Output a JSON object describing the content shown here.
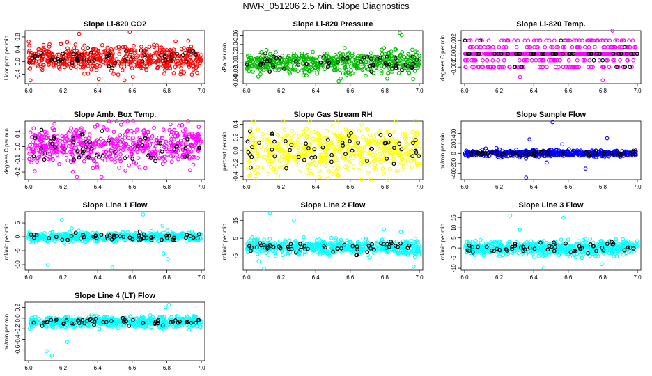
{
  "page_title": "NWR_051206  2.5 Min. Slope Diagnostics",
  "chart_data": [
    {
      "type": "scatter",
      "title": "Slope Li-820 CO2",
      "ylabel": "Licor ppm per min.",
      "color": "#ff0000",
      "xlim": [
        5.98,
        7.02
      ],
      "ylim": [
        -0.7,
        1.0
      ],
      "xticks": [
        "6.0",
        "6.2",
        "6.4",
        "6.6",
        "6.8",
        "7.0"
      ],
      "yticks": [
        "-0.4",
        "0.0",
        "0.4",
        "0.8"
      ],
      "yticks_values": [
        -0.4,
        0.0,
        0.4,
        0.8
      ],
      "center": 0.1,
      "spread": 0.2,
      "outliers": [
        0.95,
        0.9,
        -0.6,
        -0.55,
        -0.4
      ]
    },
    {
      "type": "scatter",
      "title": "Slope Li-820 Pressure",
      "ylabel": "kPa per min.",
      "color": "#00bb00",
      "xlim": [
        5.98,
        7.02
      ],
      "ylim": [
        -0.045,
        0.07
      ],
      "xticks": [
        "6.0",
        "6.2",
        "6.4",
        "6.6",
        "6.8",
        "7.0"
      ],
      "yticks": [
        "-0.04",
        "-0.02",
        "0.00",
        "0.02",
        "0.04",
        "0.06"
      ],
      "yticks_values": [
        -0.04,
        -0.02,
        0.0,
        0.02,
        0.04,
        0.06
      ],
      "center": 0.0,
      "spread": 0.012,
      "outliers": [
        0.065,
        0.06,
        -0.04,
        -0.035
      ]
    },
    {
      "type": "scatter",
      "title": "Slope Li-820 Temp.",
      "ylabel": "degrees C per min.",
      "color": "#ff00ff",
      "xlim": [
        5.98,
        7.02
      ],
      "ylim": [
        -0.0045,
        0.0035
      ],
      "xticks": [
        "6.0",
        "6.2",
        "6.4",
        "6.6",
        "6.8",
        "7.0"
      ],
      "yticks": [
        "-0.002",
        "0.000",
        "0.002"
      ],
      "yticks_values": [
        -0.002,
        0.0,
        0.002
      ],
      "center": 0.0,
      "spread": 0.001,
      "outliers": [
        0.0035,
        -0.0035,
        -0.004
      ],
      "discrete": [
        -0.002,
        -0.001,
        0.0,
        0.001,
        0.002
      ]
    },
    {
      "type": "scatter",
      "title": "Slope Amb. Box Temp.",
      "ylabel": "degrees C per min.",
      "color": "#ff00ff",
      "xlim": [
        5.98,
        7.02
      ],
      "ylim": [
        -0.26,
        0.2
      ],
      "xticks": [
        "6.0",
        "6.2",
        "6.4",
        "6.6",
        "6.8",
        "7.0"
      ],
      "yticks": [
        "-0.2",
        "-0.1",
        "0.0",
        "0.1"
      ],
      "yticks_values": [
        -0.2,
        -0.1,
        0.0,
        0.1
      ],
      "center": 0.0,
      "spread": 0.08,
      "outliers": [
        0.18,
        -0.24
      ]
    },
    {
      "type": "scatter",
      "title": "Slope Gas Stream RH",
      "ylabel": "percent per min.",
      "color": "#ffff00",
      "xlim": [
        5.98,
        7.02
      ],
      "ylim": [
        -0.45,
        0.45
      ],
      "xticks": [
        "6.0",
        "6.2",
        "6.4",
        "6.6",
        "6.8",
        "7.0"
      ],
      "yticks": [
        "-0.4",
        "-0.2",
        "0.0",
        "0.2",
        "0.4"
      ],
      "yticks_values": [
        -0.4,
        -0.2,
        0.0,
        0.2,
        0.4
      ],
      "center": 0.0,
      "spread": 0.18,
      "outliers": [
        0.4,
        -0.4
      ]
    },
    {
      "type": "scatter",
      "title": "Slope Sample Flow",
      "ylabel": "ml/min per min.",
      "color": "#0000ff",
      "xlim": [
        5.98,
        7.02
      ],
      "ylim": [
        -520,
        640
      ],
      "xticks": [
        "6.0",
        "6.2",
        "6.4",
        "6.6",
        "6.8",
        "7.0"
      ],
      "yticks": [
        "-400",
        "-200",
        "0",
        "200",
        "400"
      ],
      "yticks_values": [
        -400,
        -200,
        0,
        200,
        400
      ],
      "center": 0.0,
      "spread": 30,
      "outliers": [
        620,
        300,
        280,
        -180,
        -300,
        -480,
        180
      ]
    },
    {
      "type": "scatter",
      "title": "Slope Line 1 Flow",
      "ylabel": "ml/min per min.",
      "color": "#00ffff",
      "xlim": [
        5.98,
        7.02
      ],
      "ylim": [
        -12,
        9
      ],
      "xticks": [
        "6.0",
        "6.2",
        "6.4",
        "6.6",
        "6.8",
        "7.0"
      ],
      "yticks": [
        "-10",
        "-5",
        "0",
        "5"
      ],
      "yticks_values": [
        -10,
        -5,
        0,
        5
      ],
      "center": 0.0,
      "spread": 0.8,
      "outliers": [
        8,
        6,
        4,
        -6,
        -8,
        -11,
        -10,
        3
      ]
    },
    {
      "type": "scatter",
      "title": "Slope Line 2 Flow",
      "ylabel": "ml/min per min.",
      "color": "#00ffff",
      "xlim": [
        5.98,
        7.02
      ],
      "ylim": [
        -13,
        20
      ],
      "xticks": [
        "6.0",
        "6.2",
        "6.4",
        "6.6",
        "6.8",
        "7.0"
      ],
      "yticks": [
        "-5",
        "5",
        "15"
      ],
      "yticks_values": [
        -5,
        5,
        15
      ],
      "center": 0.0,
      "spread": 2.0,
      "outliers": [
        19,
        15,
        10,
        -8,
        -11,
        -12
      ]
    },
    {
      "type": "scatter",
      "title": "Slope Line 3 Flow",
      "ylabel": "ml/min per min.",
      "color": "#00ffff",
      "xlim": [
        5.98,
        7.02
      ],
      "ylim": [
        -11,
        18
      ],
      "xticks": [
        "6.0",
        "6.2",
        "6.4",
        "6.6",
        "6.8",
        "7.0"
      ],
      "yticks": [
        "-10",
        "-5",
        "0",
        "5",
        "10",
        "15"
      ],
      "yticks_values": [
        -10,
        -5,
        0,
        5,
        10,
        15
      ],
      "center": 0.0,
      "spread": 1.8,
      "outliers": [
        16,
        15,
        9,
        -8,
        -10
      ]
    },
    {
      "type": "scatter",
      "title": "Slope Line 4 (LT) Flow",
      "ylabel": "ml/min per min.",
      "color": "#00ffff",
      "xlim": [
        5.98,
        7.02
      ],
      "ylim": [
        -0.8,
        0.3
      ],
      "xticks": [
        "6.0",
        "6.2",
        "6.4",
        "6.6",
        "6.8",
        "7.0"
      ],
      "yticks": [
        "-0.6",
        "-0.4",
        "-0.2",
        "0.0",
        "0.2"
      ],
      "yticks_values": [
        -0.6,
        -0.4,
        -0.2,
        0.0,
        0.2
      ],
      "center": -0.07,
      "spread": 0.05,
      "outliers": [
        0.25,
        -0.45,
        -0.62,
        -0.7,
        0.2
      ]
    }
  ]
}
